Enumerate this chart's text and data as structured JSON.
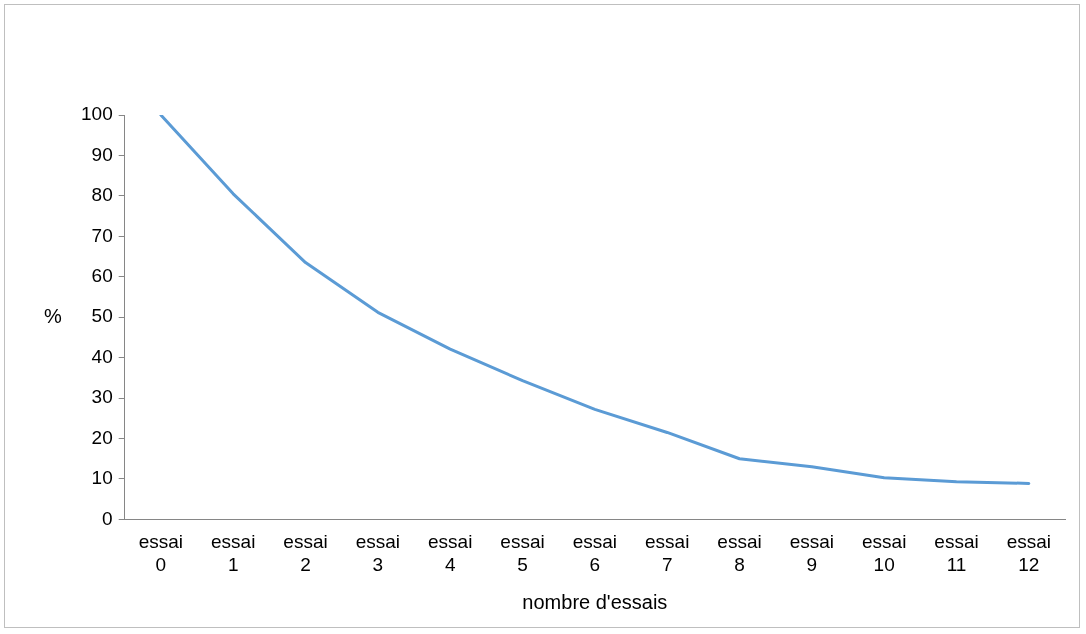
{
  "chart_data": {
    "type": "line",
    "xlabel": "nombre d'essais",
    "ylabel": "%",
    "categories": [
      "essai 0",
      "essai 1",
      "essai 2",
      "essai 3",
      "essai 4",
      "essai 5",
      "essai 6",
      "essai 7",
      "essai 8",
      "essai 9",
      "essai 10",
      "essai 11",
      "essai 12"
    ],
    "series": [
      {
        "color": "#5b9bd5",
        "values": [
          100,
          80.5,
          63.5,
          51.2,
          42.1,
          34.3,
          27.2,
          21.5,
          15,
          13,
          10.3,
          9.3,
          8.9
        ]
      }
    ],
    "ylim": [
      0,
      100
    ],
    "yticks": [
      0,
      10,
      20,
      30,
      40,
      50,
      60,
      70,
      80,
      90,
      100
    ],
    "grid": false,
    "legend": false,
    "marker": "none",
    "line_style": "solid"
  }
}
